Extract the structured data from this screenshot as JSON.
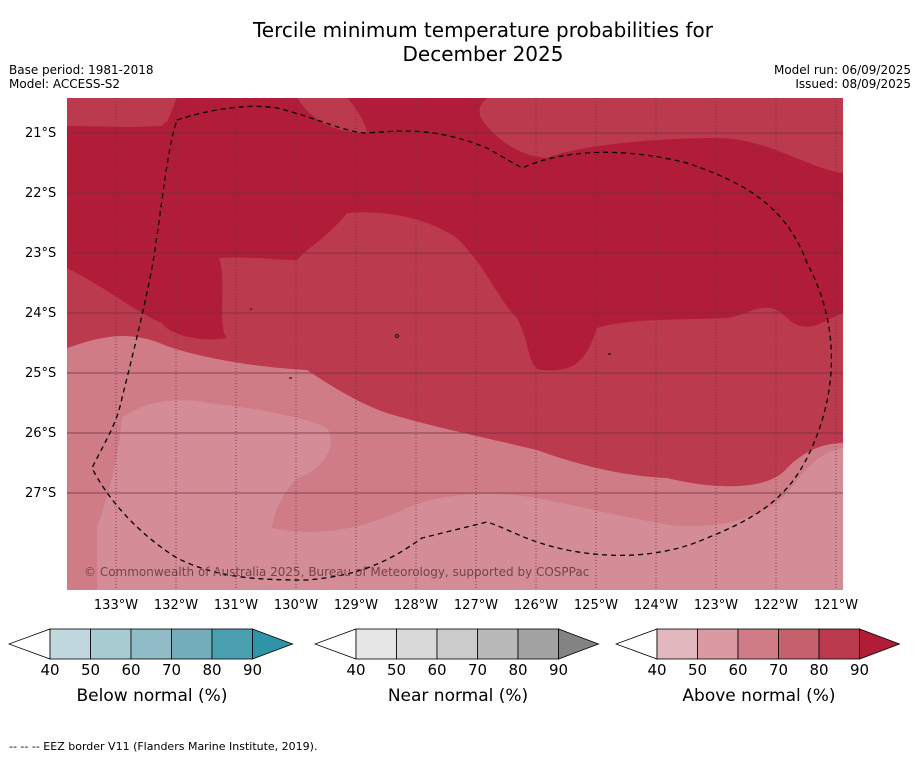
{
  "title_line1": "Tercile minimum temperature probabilities for",
  "title_line2": "December 2025",
  "base_period": "Base period: 1981-2018",
  "model": "Model: ACCESS-S2",
  "model_run": "Model run: 06/09/2025",
  "issued": "Issued: 08/09/2025",
  "copyright": "© Commonwealth of Australia 2025, Bureau of Meteorology, supported by COSPPac",
  "lat_labels": [
    "21°S",
    "22°S",
    "23°S",
    "24°S",
    "25°S",
    "26°S",
    "27°S"
  ],
  "lon_labels": [
    "133°W",
    "132°W",
    "131°W",
    "130°W",
    "129°W",
    "128°W",
    "127°W",
    "126°W",
    "125°W",
    "124°W",
    "123°W",
    "122°W",
    "121°W"
  ],
  "colorbars": [
    {
      "label": "Below normal (%)",
      "ticks": [
        "40",
        "50",
        "60",
        "70",
        "80",
        "90"
      ],
      "colors": [
        "#c0d8dd",
        "#a8cbd2",
        "#8fbcc6",
        "#73adb9",
        "#4aa0b0",
        "#2e94a8"
      ]
    },
    {
      "label": "Near normal (%)",
      "ticks": [
        "40",
        "50",
        "60",
        "70",
        "80",
        "90"
      ],
      "colors": [
        "#e6e6e6",
        "#d9d9d9",
        "#cbcbcb",
        "#b9b9b9",
        "#a2a2a2",
        "#838383"
      ]
    },
    {
      "label": "Above normal (%)",
      "ticks": [
        "40",
        "50",
        "60",
        "70",
        "80",
        "90"
      ],
      "colors": [
        "#e3b7be",
        "#d99aa3",
        "#cf7c87",
        "#c5606d",
        "#bb3a4d",
        "#b11c38"
      ]
    }
  ],
  "footer": "--  --  -- EEZ border V11 (Flanders Marine Institute, 2019)."
}
